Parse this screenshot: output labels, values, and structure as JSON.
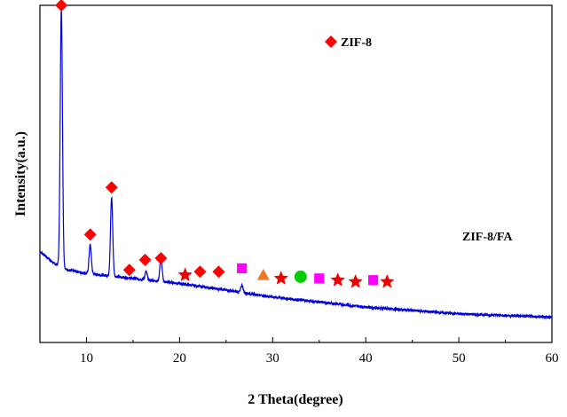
{
  "chart_data": {
    "type": "line",
    "xlabel": "2 Theta(degree)",
    "ylabel": "Intensity(a.u.)",
    "xlim": [
      5,
      60
    ],
    "xticks": [
      10,
      20,
      30,
      40,
      50,
      60
    ],
    "y_ticks_shown": false,
    "grid": false,
    "legend": {
      "placement": "top-right",
      "entries": [
        {
          "marker": "diamond",
          "color": "#ff0000",
          "label": "ZIF-8"
        }
      ]
    },
    "series": [
      {
        "name": "ZIF-8/FA",
        "color": "#0000dd",
        "baseline": {
          "x": [
            5,
            6.5,
            8,
            10,
            15,
            20,
            25,
            30,
            35,
            40,
            45,
            50,
            55,
            60
          ],
          "y": [
            0.27,
            0.235,
            0.215,
            0.205,
            0.19,
            0.175,
            0.155,
            0.135,
            0.12,
            0.105,
            0.095,
            0.085,
            0.08,
            0.075
          ]
        },
        "peaks": [
          {
            "x": 7.3,
            "y": 0.99
          },
          {
            "x": 10.4,
            "y": 0.29
          },
          {
            "x": 12.7,
            "y": 0.43
          },
          {
            "x": 14.7,
            "y": 0.17
          },
          {
            "x": 16.4,
            "y": 0.21
          },
          {
            "x": 18.0,
            "y": 0.25
          },
          {
            "x": 22.1,
            "y": 0.155
          },
          {
            "x": 24.5,
            "y": 0.16
          },
          {
            "x": 26.7,
            "y": 0.17
          },
          {
            "x": 29.6,
            "y": 0.12
          },
          {
            "x": 32.4,
            "y": 0.115
          },
          {
            "x": 35.0,
            "y": 0.11
          },
          {
            "x": 40.5,
            "y": 0.095
          },
          {
            "x": 42.8,
            "y": 0.09
          },
          {
            "x": 47.0,
            "y": 0.085
          },
          {
            "x": 49.8,
            "y": 0.085
          },
          {
            "x": 56.0,
            "y": 0.075
          }
        ]
      }
    ],
    "markers": [
      {
        "shape": "diamond",
        "color": "#ff0000",
        "x": 7.3,
        "y": 1.0
      },
      {
        "shape": "diamond",
        "color": "#ff0000",
        "x": 10.4,
        "y": 0.32
      },
      {
        "shape": "diamond",
        "color": "#ff0000",
        "x": 12.7,
        "y": 0.46
      },
      {
        "shape": "diamond",
        "color": "#ff0000",
        "x": 14.6,
        "y": 0.215
      },
      {
        "shape": "diamond",
        "color": "#ff0000",
        "x": 16.3,
        "y": 0.245
      },
      {
        "shape": "diamond",
        "color": "#ff0000",
        "x": 18.0,
        "y": 0.25
      },
      {
        "shape": "diamond",
        "color": "#ff0000",
        "x": 22.2,
        "y": 0.21
      },
      {
        "shape": "diamond",
        "color": "#ff0000",
        "x": 24.2,
        "y": 0.21
      },
      {
        "shape": "star",
        "color": "#ee0000",
        "x": 20.6,
        "y": 0.2
      },
      {
        "shape": "star",
        "color": "#ee0000",
        "x": 30.9,
        "y": 0.19
      },
      {
        "shape": "star",
        "color": "#ee0000",
        "x": 37.0,
        "y": 0.185
      },
      {
        "shape": "star",
        "color": "#ee0000",
        "x": 38.9,
        "y": 0.18
      },
      {
        "shape": "star",
        "color": "#ee0000",
        "x": 42.3,
        "y": 0.18
      },
      {
        "shape": "square",
        "color": "#ff00ff",
        "x": 26.7,
        "y": 0.22
      },
      {
        "shape": "square",
        "color": "#ff00ff",
        "x": 35.0,
        "y": 0.19
      },
      {
        "shape": "square",
        "color": "#ff00ff",
        "x": 40.8,
        "y": 0.185
      },
      {
        "shape": "triangle",
        "color": "#ee7722",
        "x": 29.0,
        "y": 0.2
      },
      {
        "shape": "circle",
        "color": "#00cc00",
        "x": 33.0,
        "y": 0.195
      }
    ]
  }
}
